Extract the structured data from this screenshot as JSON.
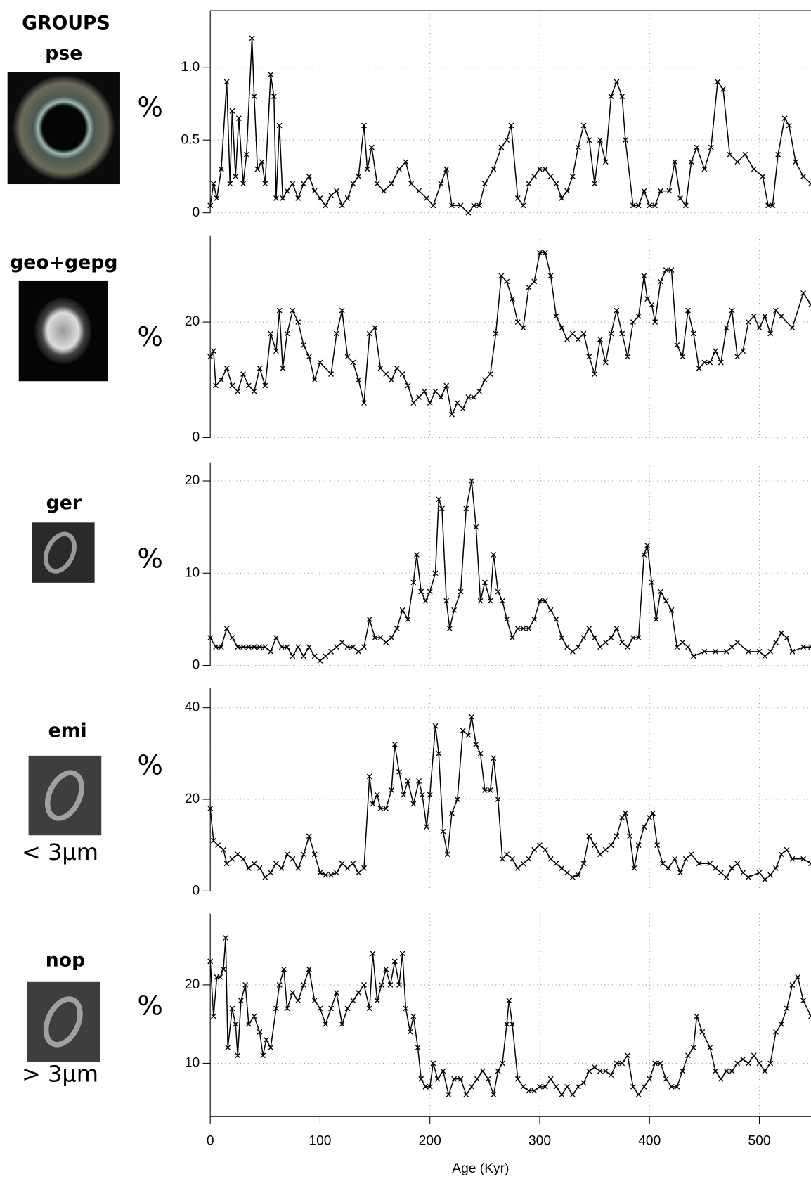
{
  "heading": "GROUPS",
  "chart_data": [
    {
      "type": "line",
      "group": "pse",
      "ylabel": "%",
      "color": "#000000",
      "grid": true,
      "xlim": [
        0,
        547
      ],
      "ylim": [
        0,
        1.39
      ],
      "yticks": [
        0,
        0.5,
        {
          "value": 1,
          "label": "1.0"
        }
      ],
      "x": [
        0,
        3,
        6,
        10,
        15,
        18,
        20,
        23,
        26,
        30,
        33,
        38,
        40,
        43,
        47,
        50,
        55,
        58,
        60,
        63,
        66,
        70,
        75,
        80,
        85,
        90,
        95,
        100,
        105,
        110,
        115,
        120,
        125,
        130,
        135,
        140,
        143,
        147,
        152,
        158,
        165,
        172,
        178,
        183,
        190,
        197,
        203,
        210,
        215,
        220,
        228,
        235,
        240,
        245,
        250,
        258,
        265,
        270,
        274,
        280,
        285,
        290,
        295,
        300,
        305,
        310,
        315,
        320,
        325,
        330,
        335,
        340,
        345,
        350,
        355,
        360,
        365,
        370,
        375,
        378,
        385,
        390,
        395,
        400,
        405,
        410,
        418,
        423,
        428,
        433,
        438,
        443,
        450,
        456,
        462,
        467,
        473,
        480,
        487,
        495,
        503,
        508,
        512,
        517,
        523,
        527,
        533,
        540,
        547
      ],
      "values": [
        0.05,
        0.2,
        0.1,
        0.3,
        0.9,
        0.2,
        0.7,
        0.25,
        0.65,
        0.2,
        0.4,
        1.2,
        0.8,
        0.3,
        0.35,
        0.2,
        0.95,
        0.8,
        0.1,
        0.6,
        0.1,
        0.15,
        0.2,
        0.1,
        0.2,
        0.25,
        0.15,
        0.1,
        0.05,
        0.12,
        0.15,
        0.05,
        0.1,
        0.2,
        0.25,
        0.6,
        0.3,
        0.45,
        0.2,
        0.15,
        0.2,
        0.3,
        0.35,
        0.2,
        0.15,
        0.1,
        0.05,
        0.2,
        0.3,
        0.05,
        0.05,
        0,
        0.05,
        0.05,
        0.2,
        0.3,
        0.45,
        0.5,
        0.6,
        0.1,
        0.05,
        0.2,
        0.25,
        0.3,
        0.3,
        0.25,
        0.2,
        0.1,
        0.15,
        0.25,
        0.45,
        0.6,
        0.5,
        0.2,
        0.5,
        0.35,
        0.8,
        0.9,
        0.8,
        0.5,
        0.05,
        0.05,
        0.15,
        0.05,
        0.05,
        0.15,
        0.15,
        0.35,
        0.1,
        0.05,
        0.35,
        0.45,
        0.3,
        0.45,
        0.9,
        0.85,
        0.4,
        0.35,
        0.4,
        0.3,
        0.25,
        0.05,
        0.05,
        0.4,
        0.65,
        0.6,
        0.35,
        0.25,
        0.2
      ]
    },
    {
      "type": "line",
      "group": "geo+gepg",
      "ylabel": "%",
      "color": "#000000",
      "grid": true,
      "xlim": [
        0,
        547
      ],
      "ylim": [
        0,
        35
      ],
      "yticks": [
        0,
        20
      ],
      "x": [
        0,
        3,
        5,
        10,
        15,
        20,
        25,
        30,
        35,
        40,
        45,
        50,
        55,
        60,
        63,
        66,
        70,
        75,
        80,
        85,
        90,
        95,
        100,
        110,
        115,
        120,
        125,
        130,
        135,
        140,
        145,
        150,
        155,
        160,
        165,
        170,
        175,
        180,
        185,
        190,
        195,
        200,
        205,
        210,
        215,
        220,
        225,
        230,
        235,
        240,
        245,
        250,
        255,
        260,
        265,
        270,
        275,
        280,
        285,
        290,
        295,
        300,
        305,
        310,
        315,
        320,
        325,
        330,
        335,
        340,
        345,
        350,
        355,
        360,
        365,
        370,
        375,
        380,
        385,
        390,
        395,
        398,
        402,
        405,
        410,
        415,
        420,
        425,
        430,
        435,
        440,
        445,
        450,
        455,
        460,
        465,
        470,
        475,
        480,
        485,
        490,
        495,
        500,
        505,
        510,
        515,
        520,
        530,
        540,
        547
      ],
      "values": [
        14,
        15,
        9,
        10,
        12,
        9,
        8,
        11,
        9,
        8,
        12,
        9,
        18,
        15,
        22,
        12,
        18,
        22,
        20,
        16,
        14,
        10,
        13,
        11,
        18,
        22,
        14,
        13,
        10,
        6,
        18,
        19,
        12,
        11,
        10,
        12,
        11,
        9,
        6,
        7,
        8,
        6,
        8,
        7,
        9,
        4,
        6,
        5,
        7,
        7,
        8,
        10,
        11,
        18,
        28,
        27,
        24,
        20,
        19,
        26,
        27,
        32,
        32,
        28,
        21,
        19,
        17,
        18,
        17,
        18,
        14,
        11,
        17,
        13,
        18,
        22,
        18,
        14,
        20,
        21,
        28,
        24,
        23,
        20,
        27,
        29,
        29,
        16,
        14,
        22,
        18,
        12,
        13,
        13,
        15,
        13,
        19,
        22,
        14,
        15,
        20,
        21,
        19,
        21,
        18,
        22,
        21,
        19,
        25,
        23
      ]
    },
    {
      "type": "line",
      "group": "ger",
      "ylabel": "%",
      "color": "#000000",
      "grid": true,
      "xlim": [
        0,
        547
      ],
      "ylim": [
        0,
        22
      ],
      "yticks": [
        0,
        10,
        20
      ],
      "x": [
        0,
        5,
        10,
        15,
        20,
        25,
        30,
        35,
        40,
        45,
        50,
        55,
        60,
        65,
        70,
        75,
        80,
        85,
        90,
        95,
        100,
        105,
        110,
        115,
        120,
        125,
        130,
        135,
        140,
        145,
        150,
        155,
        160,
        165,
        170,
        175,
        180,
        185,
        188,
        192,
        196,
        200,
        205,
        208,
        211,
        215,
        218,
        222,
        228,
        233,
        238,
        242,
        246,
        250,
        255,
        258,
        262,
        266,
        270,
        275,
        280,
        285,
        290,
        295,
        300,
        305,
        310,
        315,
        320,
        325,
        330,
        335,
        340,
        345,
        350,
        355,
        360,
        365,
        370,
        375,
        380,
        385,
        390,
        395,
        398,
        402,
        406,
        410,
        415,
        420,
        425,
        430,
        435,
        440,
        450,
        460,
        470,
        475,
        480,
        490,
        500,
        505,
        510,
        515,
        520,
        525,
        530,
        540,
        547
      ],
      "values": [
        3,
        2,
        2,
        4,
        3,
        2,
        2,
        2,
        2,
        2,
        2,
        1.5,
        3,
        2,
        2,
        1,
        2,
        1,
        2,
        1,
        0.5,
        1,
        1.5,
        2,
        2.5,
        2,
        2,
        1.5,
        2,
        5,
        3,
        3,
        2.5,
        3,
        4,
        6,
        5,
        9,
        12,
        8,
        7,
        8,
        10,
        18,
        17,
        7,
        4,
        6,
        8,
        17,
        20,
        15,
        7,
        9,
        7,
        12,
        8,
        7,
        5,
        3,
        4,
        4,
        4,
        5,
        7,
        7,
        6,
        5,
        3,
        2,
        1.5,
        2,
        3,
        4,
        3,
        2,
        2.5,
        3,
        4,
        2.5,
        2,
        3,
        3,
        12,
        13,
        9,
        5,
        8,
        7,
        6,
        2,
        2.5,
        2,
        1,
        1.5,
        1.5,
        1.5,
        2,
        2.5,
        1.5,
        1.5,
        1,
        1.5,
        2.5,
        3.5,
        3,
        1.5,
        2,
        2
      ]
    },
    {
      "type": "line",
      "group": "emi",
      "note": "< 3µm",
      "ylabel": "%",
      "color": "#000000",
      "grid": true,
      "xlim": [
        0,
        547
      ],
      "ylim": [
        0,
        44.3
      ],
      "yticks": [
        0,
        20,
        40
      ],
      "x": [
        0,
        3,
        7,
        12,
        15,
        20,
        25,
        30,
        35,
        40,
        45,
        50,
        55,
        60,
        65,
        70,
        75,
        80,
        85,
        90,
        95,
        100,
        105,
        110,
        115,
        120,
        125,
        130,
        135,
        140,
        145,
        148,
        152,
        155,
        160,
        165,
        168,
        172,
        176,
        180,
        185,
        190,
        193,
        197,
        200,
        205,
        208,
        212,
        216,
        220,
        225,
        230,
        235,
        238,
        242,
        246,
        250,
        255,
        258,
        262,
        266,
        270,
        275,
        280,
        285,
        290,
        295,
        300,
        305,
        310,
        315,
        320,
        325,
        330,
        335,
        340,
        345,
        350,
        355,
        360,
        365,
        370,
        375,
        378,
        382,
        386,
        390,
        395,
        400,
        403,
        407,
        412,
        417,
        423,
        428,
        433,
        438,
        445,
        455,
        460,
        465,
        470,
        475,
        480,
        485,
        490,
        500,
        505,
        510,
        515,
        520,
        525,
        530,
        540,
        547
      ],
      "values": [
        18,
        11,
        10,
        9,
        6,
        7,
        8,
        7,
        5,
        6,
        5,
        3,
        4,
        6,
        5,
        8,
        7,
        5,
        8,
        12,
        8,
        4,
        3.5,
        3.5,
        4,
        6,
        5,
        6,
        4,
        5,
        25,
        19,
        21,
        18,
        18,
        22,
        32,
        26,
        21,
        24,
        19,
        24,
        21,
        14,
        21,
        36,
        30,
        13,
        8,
        17,
        20,
        35,
        34,
        38,
        32,
        30,
        22,
        22,
        29,
        20,
        7,
        8,
        7,
        5,
        6,
        7,
        9,
        10,
        9,
        7,
        6,
        5,
        4,
        3,
        3.5,
        6,
        12,
        10,
        8,
        9,
        10,
        12,
        16,
        17,
        12,
        5,
        10,
        14,
        16,
        17,
        10,
        6,
        5,
        7,
        4,
        7,
        8,
        6,
        6,
        5,
        4,
        3,
        5,
        6,
        4,
        3,
        4,
        2.5,
        3.5,
        5,
        8,
        9,
        7,
        7,
        6
      ]
    },
    {
      "type": "line",
      "group": "nop",
      "note": "> 3µm",
      "ylabel": "%",
      "color": "#000000",
      "grid": true,
      "xlim": [
        0,
        547
      ],
      "ylim": [
        3.2,
        29.1
      ],
      "yticks": [
        10,
        20
      ],
      "xticks": [
        0,
        100,
        200,
        300,
        400,
        500
      ],
      "xlabel": "Age (Kyr)",
      "x": [
        0,
        3,
        6,
        9,
        12,
        14,
        16,
        20,
        23,
        25,
        28,
        32,
        35,
        40,
        45,
        48,
        51,
        55,
        60,
        63,
        67,
        70,
        75,
        80,
        85,
        90,
        95,
        100,
        105,
        110,
        115,
        120,
        125,
        130,
        135,
        140,
        145,
        148,
        152,
        156,
        160,
        164,
        168,
        172,
        175,
        178,
        182,
        185,
        189,
        192,
        196,
        200,
        203,
        207,
        212,
        217,
        222,
        228,
        233,
        238,
        243,
        248,
        253,
        258,
        262,
        266,
        270,
        272,
        275,
        280,
        285,
        290,
        295,
        300,
        305,
        310,
        315,
        320,
        325,
        330,
        335,
        340,
        345,
        350,
        355,
        360,
        365,
        370,
        375,
        380,
        385,
        390,
        395,
        400,
        405,
        410,
        415,
        420,
        425,
        430,
        435,
        440,
        443,
        448,
        455,
        460,
        465,
        470,
        475,
        480,
        485,
        490,
        495,
        500,
        505,
        510,
        515,
        520,
        525,
        530,
        535,
        540,
        547
      ],
      "values": [
        23,
        16,
        21,
        21,
        22,
        26,
        12,
        17,
        15,
        11,
        18,
        20,
        15,
        16,
        14,
        11,
        13,
        12,
        17,
        20,
        22,
        17,
        19,
        18,
        20,
        22,
        18,
        17,
        15,
        17,
        19,
        15,
        17,
        18,
        19,
        20,
        17,
        24,
        18,
        20,
        22,
        20,
        23,
        20,
        24,
        17,
        14,
        16,
        12,
        8,
        7,
        7,
        10,
        8,
        9,
        6,
        8,
        8,
        6,
        7,
        8,
        9,
        8,
        6,
        9,
        10,
        15,
        18,
        15,
        8,
        7,
        6.5,
        6.5,
        7,
        7,
        8,
        7,
        6,
        7,
        6,
        7,
        7.5,
        9,
        9.5,
        9,
        9,
        8.5,
        10,
        10,
        11,
        7,
        6,
        7,
        8,
        10,
        10,
        8,
        7,
        7,
        9,
        11,
        12,
        16,
        14,
        12,
        9,
        8,
        9,
        9,
        10,
        10.5,
        10,
        11,
        10,
        9,
        10,
        14,
        15,
        17,
        20,
        21,
        18,
        16
      ]
    }
  ]
}
